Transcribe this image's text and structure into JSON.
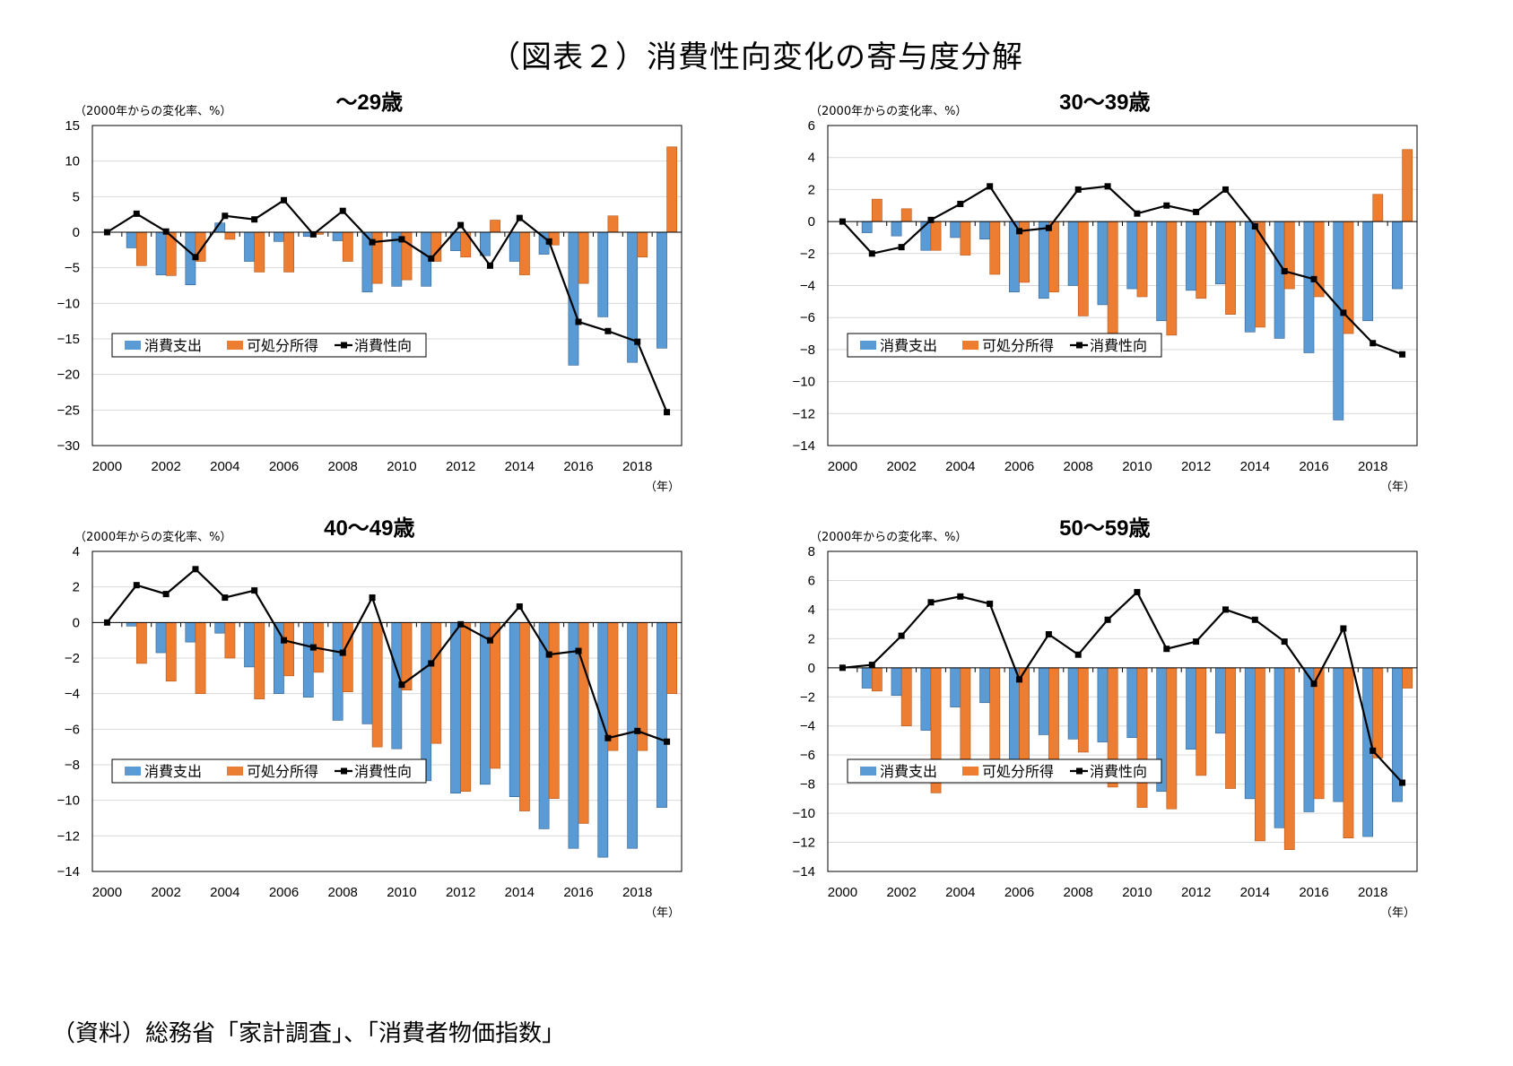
{
  "figure_title": "（図表２）消費性向変化の寄与度分解",
  "source": "（資料）総務省「家計調査」、「消費者物価指数」",
  "colors": {
    "spending": "#5b9bd5",
    "income": "#ed7d31",
    "propensity": "#000000",
    "spending_edge": "#2f5f8f",
    "income_edge": "#b3561a",
    "grid": "#d9d9d9",
    "frame": "#000000"
  },
  "chart_data": [
    {
      "type": "bar",
      "title": "～29歳",
      "ylabel": "（2000年からの変化率、%）",
      "xlabel": "（年）",
      "ylim": [
        -30,
        15
      ],
      "ystep": 5,
      "grid": true,
      "legend_position": "bottom-left",
      "categories": [
        2000,
        2001,
        2002,
        2003,
        2004,
        2005,
        2006,
        2007,
        2008,
        2009,
        2010,
        2011,
        2012,
        2013,
        2014,
        2015,
        2016,
        2017,
        2018,
        2019
      ],
      "xtick_labels": [
        "2000",
        "2002",
        "2004",
        "2006",
        "2008",
        "2010",
        "2012",
        "2014",
        "2016",
        "2018"
      ],
      "series": [
        {
          "name": "消費支出",
          "kind": "bar",
          "values": [
            0,
            -2.2,
            -6.0,
            -7.4,
            1.3,
            -4.1,
            -1.3,
            -0.6,
            -1.2,
            -8.4,
            -7.6,
            -7.6,
            -2.6,
            -3.3,
            -4.1,
            -3.1,
            -18.7,
            -11.9,
            -18.3,
            -16.3
          ]
        },
        {
          "name": "可処分所得",
          "kind": "bar",
          "values": [
            0,
            -4.7,
            -6.1,
            -4.1,
            -1.0,
            -5.6,
            -5.6,
            -0.3,
            -4.1,
            -7.2,
            -6.7,
            -4.1,
            -3.5,
            1.7,
            -6.0,
            -1.8,
            -7.2,
            2.3,
            -3.5,
            12.0
          ]
        },
        {
          "name": "消費性向",
          "kind": "line",
          "values": [
            0,
            2.6,
            0.1,
            -3.5,
            2.3,
            1.8,
            4.5,
            -0.3,
            3.0,
            -1.4,
            -1.0,
            -3.7,
            1.0,
            -4.7,
            2.0,
            -1.3,
            -12.6,
            -13.9,
            -15.4,
            -25.3
          ]
        }
      ]
    },
    {
      "type": "bar",
      "title": "30～39歳",
      "ylabel": "（2000年からの変化率、%）",
      "xlabel": "（年）",
      "ylim": [
        -14,
        6
      ],
      "ystep": 2,
      "grid": true,
      "legend_position": "bottom-left",
      "categories": [
        2000,
        2001,
        2002,
        2003,
        2004,
        2005,
        2006,
        2007,
        2008,
        2009,
        2010,
        2011,
        2012,
        2013,
        2014,
        2015,
        2016,
        2017,
        2018,
        2019
      ],
      "xtick_labels": [
        "2000",
        "2002",
        "2004",
        "2006",
        "2008",
        "2010",
        "2012",
        "2014",
        "2016",
        "2018"
      ],
      "series": [
        {
          "name": "消費支出",
          "kind": "bar",
          "values": [
            0,
            -0.7,
            -0.9,
            -1.8,
            -1.0,
            -1.1,
            -4.4,
            -4.8,
            -4.0,
            -5.2,
            -4.2,
            -6.2,
            -4.3,
            -3.9,
            -6.9,
            -7.3,
            -8.2,
            -12.4,
            -6.2,
            -4.2
          ]
        },
        {
          "name": "可処分所得",
          "kind": "bar",
          "values": [
            0,
            1.4,
            0.8,
            -1.8,
            -2.1,
            -3.3,
            -3.8,
            -4.4,
            -5.9,
            -7.2,
            -4.7,
            -7.1,
            -4.8,
            -5.8,
            -6.6,
            -4.2,
            -4.7,
            -7.0,
            1.7,
            4.5
          ]
        },
        {
          "name": "消費性向",
          "kind": "line",
          "values": [
            0,
            -2.0,
            -1.6,
            0.1,
            1.1,
            2.2,
            -0.6,
            -0.4,
            2.0,
            2.2,
            0.5,
            1.0,
            0.6,
            2.0,
            -0.3,
            -3.1,
            -3.6,
            -5.7,
            -7.6,
            -8.3
          ]
        }
      ]
    },
    {
      "type": "bar",
      "title": "40～49歳",
      "ylabel": "（2000年からの変化率、%）",
      "xlabel": "（年）",
      "ylim": [
        -14,
        4
      ],
      "ystep": 2,
      "grid": true,
      "legend_position": "bottom-left",
      "categories": [
        2000,
        2001,
        2002,
        2003,
        2004,
        2005,
        2006,
        2007,
        2008,
        2009,
        2010,
        2011,
        2012,
        2013,
        2014,
        2015,
        2016,
        2017,
        2018,
        2019
      ],
      "xtick_labels": [
        "2000",
        "2002",
        "2004",
        "2006",
        "2008",
        "2010",
        "2012",
        "2014",
        "2016",
        "2018"
      ],
      "series": [
        {
          "name": "消費支出",
          "kind": "bar",
          "values": [
            0,
            -0.2,
            -1.7,
            -1.1,
            -0.6,
            -2.5,
            -4.0,
            -4.2,
            -5.5,
            -5.7,
            -7.1,
            -8.9,
            -9.6,
            -9.1,
            -9.8,
            -11.6,
            -12.7,
            -13.2,
            -12.7,
            -10.4
          ]
        },
        {
          "name": "可処分所得",
          "kind": "bar",
          "values": [
            0,
            -2.3,
            -3.3,
            -4.0,
            -2.0,
            -4.3,
            -3.0,
            -2.8,
            -3.9,
            -7.0,
            -3.8,
            -6.8,
            -9.5,
            -8.2,
            -10.6,
            -9.9,
            -11.3,
            -7.2,
            -7.2,
            -4.0
          ]
        },
        {
          "name": "消費性向",
          "kind": "line",
          "values": [
            0,
            2.1,
            1.6,
            3.0,
            1.4,
            1.8,
            -1.0,
            -1.4,
            -1.7,
            1.4,
            -3.5,
            -2.3,
            -0.1,
            -1.0,
            0.9,
            -1.8,
            -1.6,
            -6.5,
            -6.1,
            -6.7
          ]
        }
      ]
    },
    {
      "type": "bar",
      "title": "50～59歳",
      "ylabel": "（2000年からの変化率、%）",
      "xlabel": "（年）",
      "ylim": [
        -14,
        8
      ],
      "ystep": 2,
      "grid": true,
      "legend_position": "bottom-left",
      "categories": [
        2000,
        2001,
        2002,
        2003,
        2004,
        2005,
        2006,
        2007,
        2008,
        2009,
        2010,
        2011,
        2012,
        2013,
        2014,
        2015,
        2016,
        2017,
        2018,
        2019
      ],
      "xtick_labels": [
        "2000",
        "2002",
        "2004",
        "2006",
        "2008",
        "2010",
        "2012",
        "2014",
        "2016",
        "2018"
      ],
      "series": [
        {
          "name": "消費支出",
          "kind": "bar",
          "values": [
            0,
            -1.4,
            -1.9,
            -4.3,
            -2.7,
            -2.4,
            -7.7,
            -4.6,
            -4.9,
            -5.1,
            -4.8,
            -8.5,
            -5.6,
            -4.5,
            -9.0,
            -11.0,
            -9.9,
            -9.2,
            -11.6,
            -9.2
          ]
        },
        {
          "name": "可処分所得",
          "kind": "bar",
          "values": [
            0,
            -1.6,
            -4.0,
            -8.6,
            -7.3,
            -6.6,
            -7.0,
            -6.8,
            -5.8,
            -8.2,
            -9.6,
            -9.7,
            -7.4,
            -8.3,
            -11.9,
            -12.5,
            -9.0,
            -11.7,
            -6.2,
            -1.4
          ]
        },
        {
          "name": "消費性向",
          "kind": "line",
          "values": [
            0,
            0.2,
            2.2,
            4.5,
            4.9,
            4.4,
            -0.8,
            2.3,
            0.9,
            3.3,
            5.2,
            1.3,
            1.8,
            4.0,
            3.3,
            1.8,
            -1.1,
            2.7,
            -5.7,
            -7.9
          ]
        }
      ]
    }
  ]
}
